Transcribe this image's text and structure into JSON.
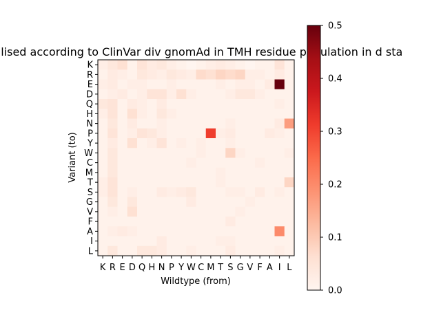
{
  "chart_data": {
    "type": "heatmap",
    "title": "ormalised according to ClinVar div gnomAd in TMH residue population in d sta",
    "xlabel": "Wildtype (from)",
    "ylabel": "Variant (to)",
    "x_categories": [
      "K",
      "R",
      "E",
      "D",
      "Q",
      "H",
      "N",
      "P",
      "Y",
      "W",
      "C",
      "M",
      "T",
      "S",
      "G",
      "V",
      "F",
      "A",
      "I",
      "L"
    ],
    "y_categories": [
      "K",
      "R",
      "E",
      "D",
      "Q",
      "H",
      "N",
      "P",
      "Y",
      "W",
      "C",
      "M",
      "T",
      "S",
      "G",
      "V",
      "F",
      "A",
      "I",
      "L"
    ],
    "colorscale": "Reds",
    "vmin": 0.0,
    "vmax": 0.5,
    "colorbar_ticks": [
      "0.0",
      "0.1",
      "0.2",
      "0.3",
      "0.4",
      "0.5"
    ],
    "values": [
      [
        0.02,
        0.04,
        0.06,
        0.01,
        0.05,
        0.03,
        0.04,
        0.02,
        0.01,
        0.0,
        0.01,
        0.02,
        0.03,
        0.02,
        0.01,
        0.0,
        0.01,
        0.01,
        0.05,
        0.01
      ],
      [
        0.01,
        0.03,
        0.02,
        0.01,
        0.04,
        0.03,
        0.02,
        0.04,
        0.03,
        0.02,
        0.07,
        0.06,
        0.08,
        0.07,
        0.08,
        0.02,
        0.02,
        0.01,
        0.03,
        0.01
      ],
      [
        0.02,
        0.03,
        0.01,
        0.02,
        0.02,
        0.01,
        0.01,
        0.02,
        0.01,
        0.01,
        0.01,
        0.01,
        0.02,
        0.01,
        0.02,
        0.02,
        0.01,
        0.03,
        0.5,
        0.01
      ],
      [
        0.01,
        0.02,
        0.03,
        0.01,
        0.02,
        0.05,
        0.05,
        0.02,
        0.06,
        0.02,
        0.01,
        0.01,
        0.01,
        0.02,
        0.04,
        0.04,
        0.02,
        0.01,
        0.01,
        0.01
      ],
      [
        0.04,
        0.05,
        0.01,
        0.03,
        0.02,
        0.01,
        0.03,
        0.01,
        0.01,
        0.01,
        0.01,
        0.01,
        0.01,
        0.01,
        0.01,
        0.01,
        0.01,
        0.01,
        0.02,
        0.01
      ],
      [
        0.02,
        0.05,
        0.01,
        0.06,
        0.02,
        0.01,
        0.04,
        0.02,
        0.01,
        0.01,
        0.01,
        0.01,
        0.01,
        0.01,
        0.01,
        0.01,
        0.01,
        0.01,
        0.01,
        0.01
      ],
      [
        0.01,
        0.04,
        0.01,
        0.03,
        0.01,
        0.01,
        0.02,
        0.01,
        0.01,
        0.01,
        0.01,
        0.01,
        0.01,
        0.02,
        0.01,
        0.01,
        0.01,
        0.01,
        0.03,
        0.17
      ],
      [
        0.01,
        0.05,
        0.01,
        0.02,
        0.05,
        0.04,
        0.02,
        0.01,
        0.01,
        0.01,
        0.01,
        0.31,
        0.02,
        0.03,
        0.01,
        0.01,
        0.01,
        0.03,
        0.02,
        0.01
      ],
      [
        0.01,
        0.03,
        0.01,
        0.06,
        0.01,
        0.02,
        0.05,
        0.01,
        0.02,
        0.01,
        0.02,
        0.01,
        0.01,
        0.02,
        0.01,
        0.01,
        0.01,
        0.01,
        0.01,
        0.01
      ],
      [
        0.01,
        0.04,
        0.01,
        0.01,
        0.01,
        0.01,
        0.01,
        0.01,
        0.01,
        0.01,
        0.02,
        0.01,
        0.01,
        0.08,
        0.02,
        0.01,
        0.01,
        0.01,
        0.01,
        0.02
      ],
      [
        0.01,
        0.04,
        0.01,
        0.01,
        0.01,
        0.01,
        0.01,
        0.01,
        0.01,
        0.02,
        0.01,
        0.01,
        0.01,
        0.01,
        0.01,
        0.01,
        0.02,
        0.01,
        0.01,
        0.01
      ],
      [
        0.01,
        0.04,
        0.01,
        0.01,
        0.01,
        0.01,
        0.01,
        0.01,
        0.01,
        0.01,
        0.01,
        0.01,
        0.02,
        0.01,
        0.01,
        0.01,
        0.01,
        0.01,
        0.01,
        0.01
      ],
      [
        0.02,
        0.05,
        0.01,
        0.01,
        0.01,
        0.01,
        0.01,
        0.01,
        0.01,
        0.01,
        0.01,
        0.01,
        0.02,
        0.01,
        0.01,
        0.01,
        0.01,
        0.01,
        0.01,
        0.08
      ],
      [
        0.02,
        0.05,
        0.01,
        0.02,
        0.01,
        0.01,
        0.03,
        0.02,
        0.03,
        0.04,
        0.01,
        0.01,
        0.01,
        0.02,
        0.02,
        0.01,
        0.03,
        0.01,
        0.02,
        0.01
      ],
      [
        0.01,
        0.04,
        0.01,
        0.04,
        0.01,
        0.01,
        0.01,
        0.01,
        0.01,
        0.03,
        0.01,
        0.01,
        0.01,
        0.01,
        0.01,
        0.02,
        0.01,
        0.01,
        0.01,
        0.01
      ],
      [
        0.01,
        0.02,
        0.01,
        0.06,
        0.01,
        0.01,
        0.01,
        0.01,
        0.01,
        0.01,
        0.01,
        0.01,
        0.01,
        0.01,
        0.02,
        0.01,
        0.01,
        0.01,
        0.01,
        0.01
      ],
      [
        0.01,
        0.01,
        0.01,
        0.01,
        0.01,
        0.01,
        0.01,
        0.01,
        0.01,
        0.01,
        0.01,
        0.01,
        0.01,
        0.03,
        0.01,
        0.01,
        0.01,
        0.01,
        0.01,
        0.01
      ],
      [
        0.01,
        0.02,
        0.03,
        0.02,
        0.01,
        0.01,
        0.01,
        0.01,
        0.01,
        0.01,
        0.01,
        0.01,
        0.01,
        0.01,
        0.01,
        0.01,
        0.01,
        0.01,
        0.2,
        0.01
      ],
      [
        0.01,
        0.01,
        0.01,
        0.01,
        0.01,
        0.01,
        0.03,
        0.01,
        0.01,
        0.01,
        0.01,
        0.01,
        0.02,
        0.02,
        0.01,
        0.01,
        0.01,
        0.01,
        0.01,
        0.01
      ],
      [
        0.01,
        0.04,
        0.01,
        0.01,
        0.04,
        0.04,
        0.03,
        0.01,
        0.01,
        0.02,
        0.01,
        0.01,
        0.01,
        0.03,
        0.01,
        0.01,
        0.01,
        0.01,
        0.02,
        0.01
      ]
    ]
  }
}
